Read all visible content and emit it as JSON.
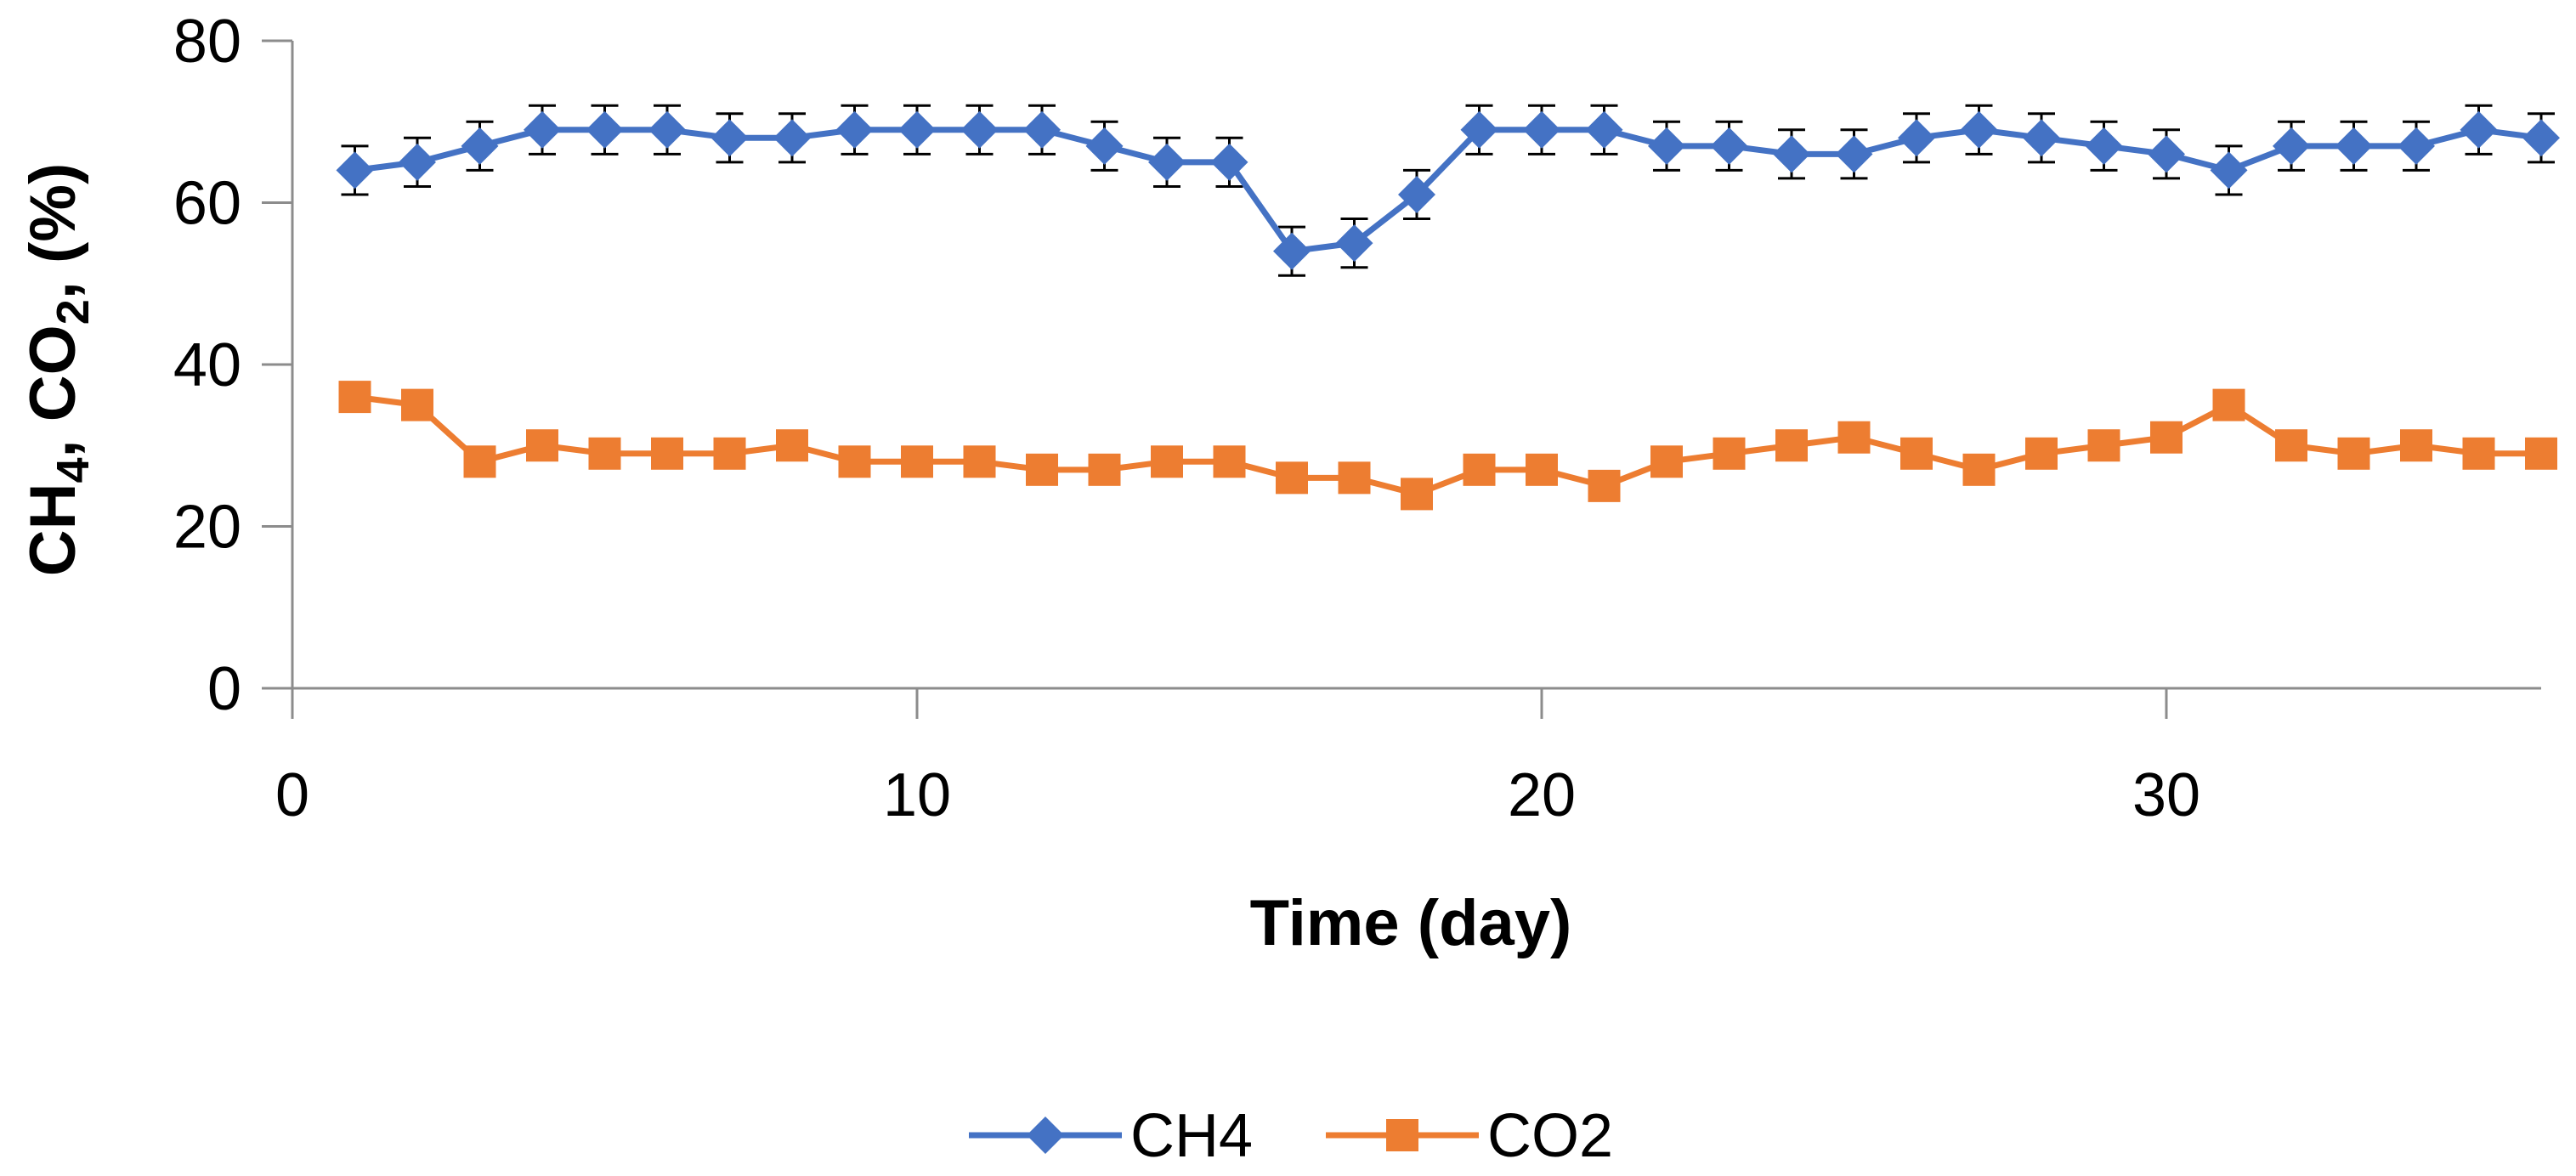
{
  "chart_data": {
    "type": "line",
    "title": "",
    "xlabel": "Time (day)",
    "ylabel": {
      "p1": "CH",
      "s1": "4",
      "p2": ", CO",
      "s2": "2",
      "p3": ", (%)"
    },
    "xlim": [
      0,
      36
    ],
    "ylim": [
      0,
      80
    ],
    "x_ticks": [
      0,
      10,
      20,
      30
    ],
    "y_ticks": [
      0,
      20,
      40,
      60,
      80
    ],
    "x_tick_labels": [
      "0",
      "10",
      "20",
      "30"
    ],
    "y_tick_labels": [
      "0",
      "20",
      "40",
      "60",
      "80"
    ],
    "grid": false,
    "legend_position": "bottom-center",
    "x": [
      1,
      2,
      3,
      4,
      5,
      6,
      7,
      8,
      9,
      10,
      11,
      12,
      13,
      14,
      15,
      16,
      17,
      18,
      19,
      20,
      21,
      22,
      23,
      24,
      25,
      26,
      27,
      28,
      29,
      30,
      31,
      32,
      33,
      34,
      35,
      36
    ],
    "series": [
      {
        "name": "CH4",
        "color": "#4472C4",
        "marker": "diamond",
        "error": 3,
        "values": [
          64,
          65,
          67,
          69,
          69,
          69,
          68,
          68,
          69,
          69,
          69,
          69,
          67,
          65,
          65,
          54,
          55,
          61,
          69,
          69,
          69,
          67,
          67,
          66,
          66,
          68,
          69,
          68,
          67,
          66,
          64,
          67,
          67,
          67,
          69,
          68
        ]
      },
      {
        "name": "CO2",
        "color": "#ED7D31",
        "marker": "square",
        "values": [
          36,
          35,
          28,
          30,
          29,
          29,
          29,
          30,
          28,
          28,
          28,
          27,
          27,
          28,
          28,
          26,
          26,
          24,
          27,
          27,
          25,
          28,
          29,
          30,
          31,
          29,
          27,
          29,
          30,
          31,
          35,
          30,
          29,
          30,
          29,
          29
        ]
      }
    ]
  }
}
